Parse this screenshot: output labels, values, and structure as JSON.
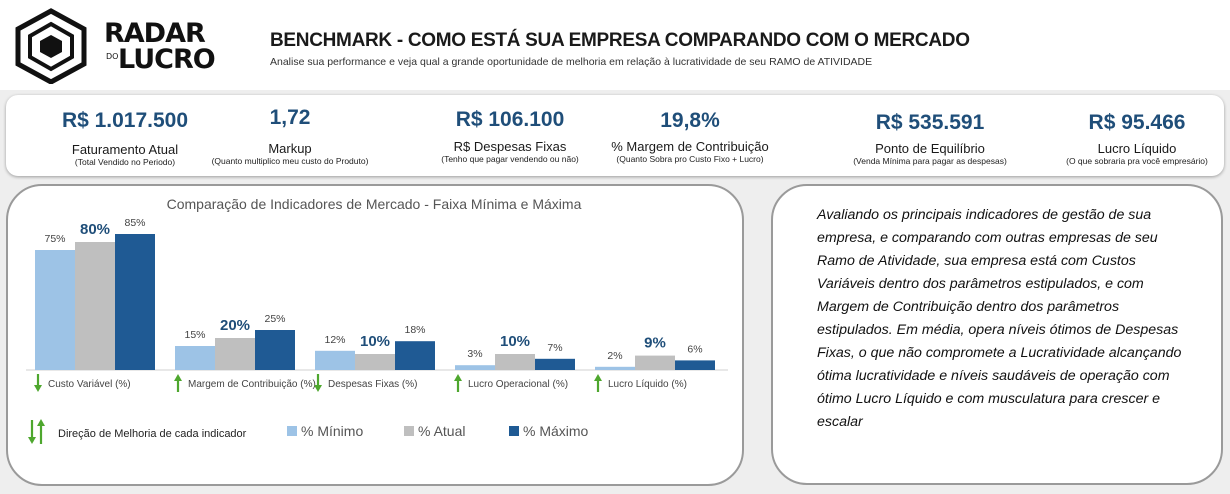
{
  "header": {
    "logo_text_1": "RADAR",
    "logo_text_2": "DO",
    "logo_text_3": "LUCRO",
    "title": "BENCHMARK - COMO ESTÁ SUA EMPRESA COMPARANDO COM O MERCADO",
    "subtitle": "Analise sua performance e veja qual a grande oportunidade de melhoria em relação à lucratividade de seu RAMO de ATIVIDADE"
  },
  "kpis": [
    {
      "value": "R$ 1.017.500",
      "label": "Faturamento Atual",
      "note": "(Total Vendido no Periodo)"
    },
    {
      "value": "1,72",
      "label": "Markup",
      "note": "(Quanto multiplico meu custo do Produto)"
    },
    {
      "value": "R$ 106.100",
      "label": "R$ Despesas Fixas",
      "note": "(Tenho que pagar vendendo ou não)"
    },
    {
      "value": "19,8%",
      "label": "% Margem de Contribuição",
      "note": "(Quanto Sobra pro Custo Fixo + Lucro)"
    },
    {
      "value": "R$ 535.591",
      "label": "Ponto de Equilíbrio",
      "note": "(Venda Mínima para pagar as despesas)"
    },
    {
      "value": "R$ 95.466",
      "label": "Lucro Líquido",
      "note": "(O que sobraria pra você empresário)"
    }
  ],
  "chart_data": {
    "type": "bar",
    "title": "Comparação de Indicadores de Mercado - Faixa Mínima e Máxima",
    "categories": [
      "Custo Variável (%)",
      "Margem de Contribuição (%)",
      "Despesas Fixas (%)",
      "Lucro Operacional (%)",
      "Lucro Líquido (%)"
    ],
    "improvement_direction": [
      "down",
      "up",
      "down",
      "up",
      "up"
    ],
    "series": [
      {
        "name": "% Mínimo",
        "color": "#9dc3e6",
        "values": [
          75,
          15,
          12,
          3,
          2
        ]
      },
      {
        "name": "% Atual",
        "color": "#bfbfbf",
        "values": [
          80,
          20,
          10,
          10,
          9
        ]
      },
      {
        "name": "% Máximo",
        "color": "#1f5a94",
        "values": [
          85,
          25,
          18,
          7,
          6
        ]
      }
    ],
    "data_labels": [
      [
        "75%",
        "80%",
        "85%"
      ],
      [
        "15%",
        "20%",
        "25%"
      ],
      [
        "12%",
        "10%",
        "18%"
      ],
      [
        "3%",
        "10%",
        "7%"
      ],
      [
        "2%",
        "9%",
        "6%"
      ]
    ],
    "direction_legend": "Direção de Melhoria de cada indicador",
    "legend_position": "bottom",
    "ylim": [
      0,
      90
    ],
    "grid": false,
    "colors": {
      "up_arrow": "#4ea72e",
      "down_arrow": "#4ea72e",
      "label_highlight": "#1f4e79"
    }
  },
  "analysis": {
    "text": "Avaliando os principais indicadores de gestão de sua empresa, e comparando com outras empresas de seu Ramo de Atividade, sua empresa está com Custos Variáveis dentro dos parâmetros estipulados, e com Margem de Contribuição dentro dos parâmetros estipulados. Em média, opera níveis ótimos de Despesas Fixas, o que não compromete a Lucratividade alcançando  ótima lucratividade e níveis saudáveis de operação com ótimo Lucro Líquido e com musculatura para crescer e escalar"
  }
}
